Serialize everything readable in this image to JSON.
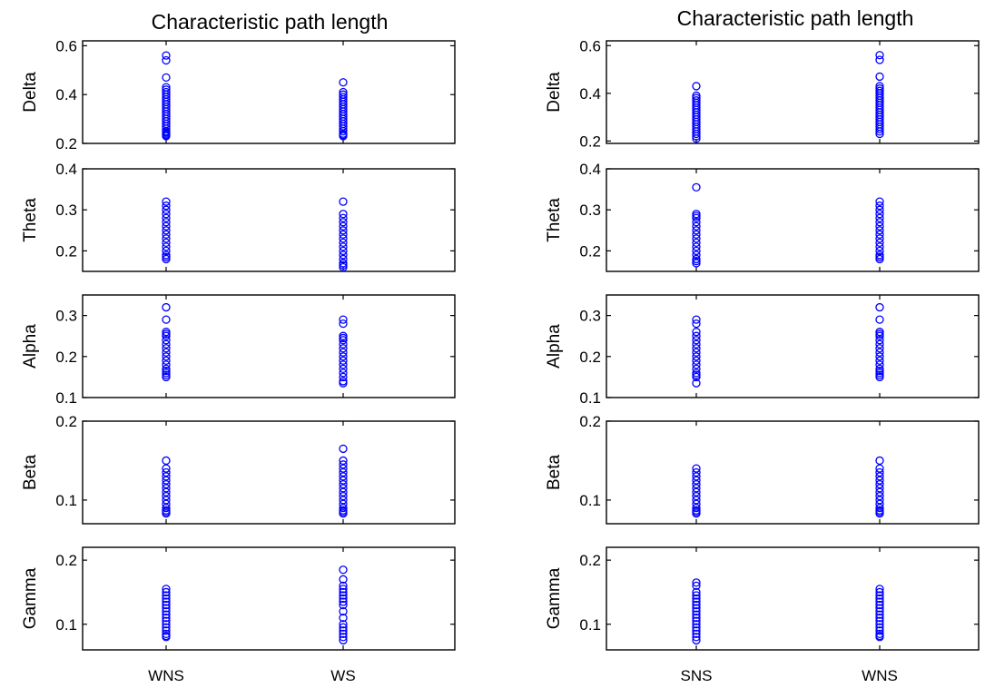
{
  "colors": {
    "marker": "#0000ff",
    "axes": "#000000",
    "background": "#ffffff"
  },
  "chart_data": [
    {
      "type": "scatter",
      "title": "Characteristic path length",
      "categories": [
        "WNS",
        "WS"
      ],
      "panels": [
        {
          "ylabel": "Delta",
          "ylim": [
            0.2,
            0.62
          ],
          "yticks": [
            "0.2",
            "0.4",
            "0.6"
          ],
          "series": [
            {
              "values": [
                0.56,
                0.54,
                0.47,
                0.43,
                0.42,
                0.41,
                0.4,
                0.39,
                0.38,
                0.37,
                0.36,
                0.35,
                0.34,
                0.33,
                0.32,
                0.31,
                0.3,
                0.29,
                0.28,
                0.27,
                0.26,
                0.25,
                0.245,
                0.24,
                0.235,
                0.23
              ]
            },
            {
              "values": [
                0.45,
                0.41,
                0.4,
                0.39,
                0.38,
                0.37,
                0.36,
                0.35,
                0.34,
                0.33,
                0.32,
                0.31,
                0.3,
                0.29,
                0.28,
                0.27,
                0.26,
                0.25,
                0.24,
                0.235,
                0.23
              ]
            }
          ]
        },
        {
          "ylabel": "Theta",
          "ylim": [
            0.15,
            0.4
          ],
          "yticks": [
            "0.2",
            "0.3",
            "0.4"
          ],
          "series": [
            {
              "values": [
                0.32,
                0.31,
                0.3,
                0.29,
                0.28,
                0.27,
                0.26,
                0.25,
                0.24,
                0.23,
                0.22,
                0.21,
                0.2,
                0.19,
                0.185,
                0.18
              ]
            },
            {
              "values": [
                0.32,
                0.29,
                0.28,
                0.27,
                0.26,
                0.25,
                0.24,
                0.23,
                0.22,
                0.21,
                0.2,
                0.19,
                0.18,
                0.17,
                0.165,
                0.16
              ]
            }
          ]
        },
        {
          "ylabel": "Alpha",
          "ylim": [
            0.1,
            0.35
          ],
          "yticks": [
            "0.1",
            "0.2",
            "0.3"
          ],
          "series": [
            {
              "values": [
                0.32,
                0.29,
                0.26,
                0.255,
                0.25,
                0.24,
                0.23,
                0.22,
                0.21,
                0.2,
                0.19,
                0.18,
                0.17,
                0.165,
                0.16,
                0.155,
                0.15
              ]
            },
            {
              "values": [
                0.29,
                0.28,
                0.25,
                0.245,
                0.24,
                0.23,
                0.22,
                0.21,
                0.2,
                0.19,
                0.18,
                0.17,
                0.16,
                0.15,
                0.14,
                0.135
              ]
            }
          ]
        },
        {
          "ylabel": "Beta",
          "ylim": [
            0.07,
            0.2
          ],
          "yticks": [
            "0.1",
            "0.2"
          ],
          "series": [
            {
              "values": [
                0.15,
                0.14,
                0.135,
                0.13,
                0.125,
                0.12,
                0.115,
                0.11,
                0.105,
                0.1,
                0.095,
                0.09,
                0.087,
                0.085,
                0.083
              ]
            },
            {
              "values": [
                0.165,
                0.15,
                0.145,
                0.14,
                0.135,
                0.13,
                0.125,
                0.12,
                0.115,
                0.11,
                0.105,
                0.1,
                0.095,
                0.09,
                0.087,
                0.085,
                0.083
              ]
            }
          ]
        },
        {
          "ylabel": "Gamma",
          "ylim": [
            0.06,
            0.22
          ],
          "yticks": [
            "0.1",
            "0.2"
          ],
          "series": [
            {
              "values": [
                0.155,
                0.15,
                0.145,
                0.14,
                0.135,
                0.13,
                0.125,
                0.12,
                0.115,
                0.11,
                0.105,
                0.1,
                0.095,
                0.09,
                0.085,
                0.082,
                0.08
              ]
            },
            {
              "values": [
                0.185,
                0.17,
                0.16,
                0.155,
                0.15,
                0.145,
                0.14,
                0.135,
                0.13,
                0.12,
                0.11,
                0.1,
                0.095,
                0.09,
                0.085,
                0.08,
                0.075
              ]
            }
          ]
        }
      ]
    },
    {
      "type": "scatter",
      "title": "Characteristic path length",
      "categories": [
        "SNS",
        "WNS"
      ],
      "panels": [
        {
          "ylabel": "Delta",
          "ylim": [
            0.19,
            0.62
          ],
          "yticks": [
            "0.2",
            "0.4",
            "0.6"
          ],
          "series": [
            {
              "values": [
                0.43,
                0.39,
                0.38,
                0.37,
                0.36,
                0.35,
                0.34,
                0.33,
                0.32,
                0.31,
                0.3,
                0.29,
                0.28,
                0.27,
                0.26,
                0.25,
                0.24,
                0.23,
                0.22,
                0.21
              ]
            },
            {
              "values": [
                0.56,
                0.54,
                0.47,
                0.43,
                0.42,
                0.41,
                0.4,
                0.39,
                0.38,
                0.37,
                0.36,
                0.35,
                0.34,
                0.33,
                0.32,
                0.31,
                0.3,
                0.29,
                0.28,
                0.27,
                0.26,
                0.25,
                0.24,
                0.23
              ]
            }
          ]
        },
        {
          "ylabel": "Theta",
          "ylim": [
            0.15,
            0.4
          ],
          "yticks": [
            "0.2",
            "0.3",
            "0.4"
          ],
          "series": [
            {
              "values": [
                0.355,
                0.29,
                0.285,
                0.28,
                0.27,
                0.26,
                0.25,
                0.24,
                0.23,
                0.22,
                0.21,
                0.2,
                0.19,
                0.18,
                0.175,
                0.17
              ]
            },
            {
              "values": [
                0.32,
                0.31,
                0.3,
                0.29,
                0.28,
                0.27,
                0.26,
                0.25,
                0.24,
                0.23,
                0.22,
                0.21,
                0.2,
                0.19,
                0.185,
                0.18
              ]
            }
          ]
        },
        {
          "ylabel": "Alpha",
          "ylim": [
            0.1,
            0.35
          ],
          "yticks": [
            "0.1",
            "0.2",
            "0.3"
          ],
          "series": [
            {
              "values": [
                0.29,
                0.28,
                0.26,
                0.25,
                0.24,
                0.23,
                0.22,
                0.21,
                0.2,
                0.19,
                0.18,
                0.17,
                0.16,
                0.155,
                0.15,
                0.135
              ]
            },
            {
              "values": [
                0.32,
                0.29,
                0.26,
                0.255,
                0.25,
                0.24,
                0.23,
                0.22,
                0.21,
                0.2,
                0.19,
                0.18,
                0.17,
                0.165,
                0.16,
                0.155,
                0.15
              ]
            }
          ]
        },
        {
          "ylabel": "Beta",
          "ylim": [
            0.07,
            0.2
          ],
          "yticks": [
            "0.1",
            "0.2"
          ],
          "series": [
            {
              "values": [
                0.14,
                0.135,
                0.13,
                0.125,
                0.12,
                0.115,
                0.11,
                0.105,
                0.1,
                0.095,
                0.09,
                0.087,
                0.085,
                0.083
              ]
            },
            {
              "values": [
                0.15,
                0.14,
                0.135,
                0.13,
                0.125,
                0.12,
                0.115,
                0.11,
                0.105,
                0.1,
                0.095,
                0.09,
                0.087,
                0.085,
                0.083
              ]
            }
          ]
        },
        {
          "ylabel": "Gamma",
          "ylim": [
            0.06,
            0.22
          ],
          "yticks": [
            "0.1",
            "0.2"
          ],
          "series": [
            {
              "values": [
                0.165,
                0.16,
                0.15,
                0.145,
                0.14,
                0.135,
                0.13,
                0.125,
                0.12,
                0.115,
                0.11,
                0.105,
                0.1,
                0.095,
                0.09,
                0.085,
                0.08,
                0.075
              ]
            },
            {
              "values": [
                0.155,
                0.15,
                0.145,
                0.14,
                0.135,
                0.13,
                0.125,
                0.12,
                0.115,
                0.11,
                0.105,
                0.1,
                0.095,
                0.09,
                0.085,
                0.082,
                0.08
              ]
            }
          ]
        }
      ]
    }
  ]
}
